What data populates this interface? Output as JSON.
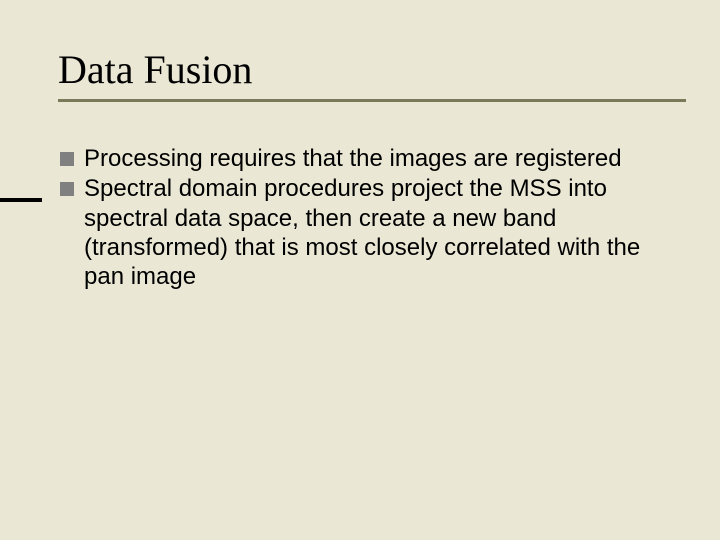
{
  "slide": {
    "title": "Data Fusion",
    "bullets": [
      "Processing requires that the images are registered",
      "Spectral domain procedures project the MSS into spectral data space, then create a new band (transformed) that is most closely correlated with the pan image"
    ]
  },
  "style": {
    "background_color": "#eae8d5",
    "title_font": "Times New Roman",
    "title_fontsize": 40,
    "title_color": "#000000",
    "underline_color": "#7a7a5a",
    "accent_bar_color": "#000000",
    "bullet_square_color": "#808080",
    "body_font": "Arial",
    "body_fontsize": 24,
    "body_color": "#000000"
  }
}
